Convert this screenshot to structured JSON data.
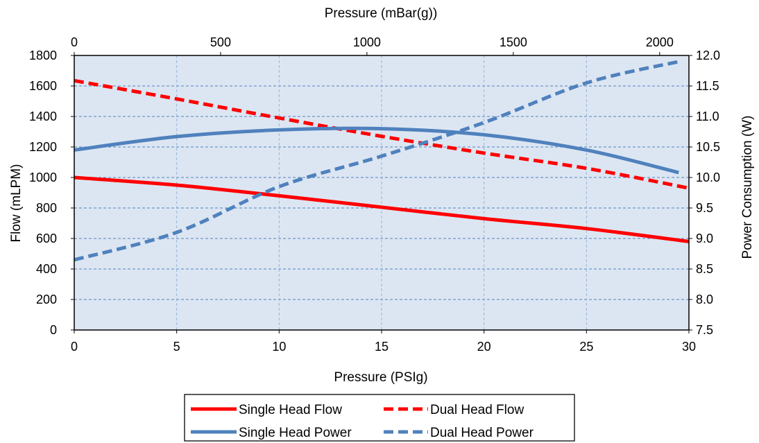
{
  "chart_data": {
    "type": "line",
    "xlabel": "Pressure (PSIg)",
    "x2label": "Pressure (mBar(g))",
    "ylabel": "Flow (mLPM)",
    "y2label": "Power Consumption (W)",
    "xlim": [
      0,
      30
    ],
    "x2lim": [
      0,
      2100
    ],
    "ylim": [
      0,
      1800
    ],
    "y2lim": [
      7.5,
      12.0
    ],
    "xticks": [
      "0",
      "5",
      "10",
      "15",
      "20",
      "25",
      "30"
    ],
    "x2ticks": [
      "0",
      "500",
      "1000",
      "1500",
      "2000"
    ],
    "yticks": [
      "0",
      "200",
      "400",
      "600",
      "800",
      "1000",
      "1200",
      "1400",
      "1600",
      "1800"
    ],
    "y2ticks": [
      "7.5",
      "8.0",
      "8.5",
      "9.0",
      "9.5",
      "10.0",
      "10.5",
      "11.0",
      "11.5",
      "12.0"
    ],
    "grid": true,
    "legend_position": "bottom",
    "plot_background": "#dce6f2",
    "series": [
      {
        "name": "Single Head Flow",
        "axis": "left",
        "color": "#ff0000",
        "style": "solid",
        "x": [
          0,
          5,
          10,
          15,
          20,
          25,
          30
        ],
        "y": [
          1000,
          950,
          880,
          805,
          730,
          665,
          580
        ]
      },
      {
        "name": "Dual Head Flow",
        "axis": "left",
        "color": "#ff0000",
        "style": "dashed",
        "x": [
          0,
          5,
          10,
          15,
          20,
          25,
          30
        ],
        "y": [
          1635,
          1515,
          1390,
          1270,
          1160,
          1060,
          930
        ]
      },
      {
        "name": "Single Head Power",
        "axis": "right",
        "color": "#4f81bd",
        "style": "solid",
        "x": [
          0,
          5,
          10,
          15,
          20,
          25,
          29.5
        ],
        "y": [
          10.45,
          10.67,
          10.78,
          10.8,
          10.7,
          10.45,
          10.08
        ]
      },
      {
        "name": "Dual Head Power",
        "axis": "right",
        "color": "#4f81bd",
        "style": "dashed",
        "x": [
          0,
          5,
          10,
          15,
          20,
          25,
          29.5
        ],
        "y": [
          8.65,
          9.1,
          9.85,
          10.35,
          10.9,
          11.55,
          11.9
        ]
      }
    ],
    "legend": {
      "rows": [
        [
          "Single Head Flow",
          "Dual Head Flow"
        ],
        [
          "Single Head Power",
          "Dual Head Power"
        ]
      ]
    }
  }
}
